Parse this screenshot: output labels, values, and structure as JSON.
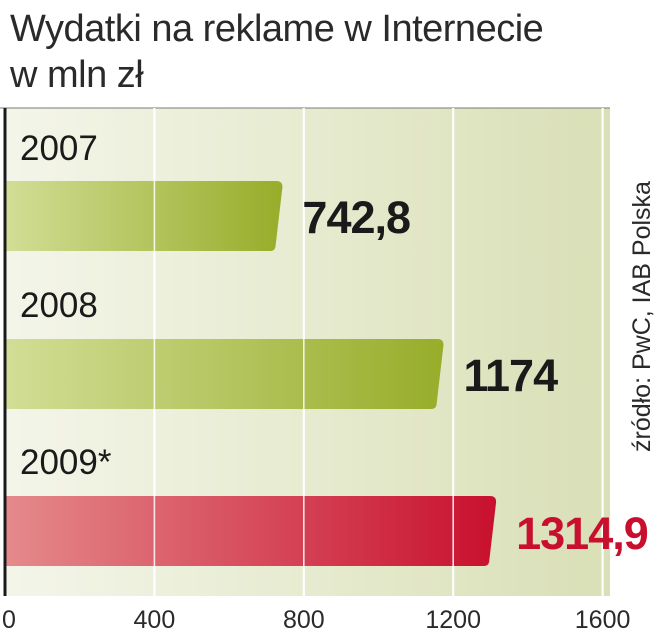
{
  "title": "Wydatki na reklame w Internecie",
  "subtitle": "w mln zł",
  "source": "źródło: PwC, IAB Polska",
  "colors": {
    "panel": "#dfe4c4",
    "bar_green_light": "#d2de96",
    "bar_green_dark": "#97ad2a",
    "bar_red_light": "#e58a8c",
    "bar_red_dark": "#c8102e",
    "value_dark": "#1a1a1a",
    "value_red": "#c8102e"
  },
  "chart_data": {
    "type": "bar",
    "orientation": "horizontal",
    "categories": [
      "2007",
      "2008",
      "2009*"
    ],
    "values": [
      742.8,
      1174,
      1314.9
    ],
    "value_labels": [
      "742,8",
      "1174",
      "1314,9"
    ],
    "highlight": [
      "normal",
      "normal",
      "forecast"
    ],
    "x_ticks": [
      "0",
      "400",
      "800",
      "1200",
      "1600"
    ],
    "xlim": [
      0,
      1600
    ],
    "grid": true
  }
}
